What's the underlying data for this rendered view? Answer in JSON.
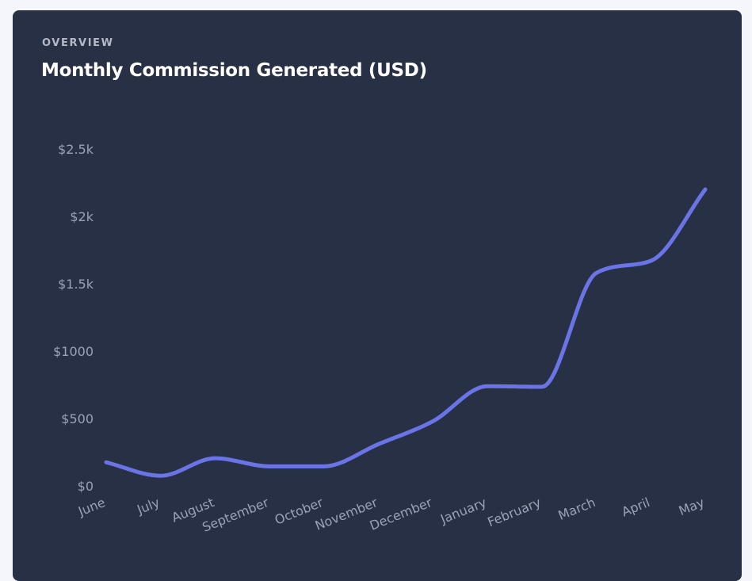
{
  "card": {
    "eyebrow": "OVERVIEW",
    "title": "Monthly Commission Generated (USD)"
  },
  "colors": {
    "background": "#f4f6fb",
    "card": "#283046",
    "line": "#6a74e6",
    "tick_text": "#9aa2b6"
  },
  "chart_data": {
    "type": "line",
    "title": "",
    "xlabel": "",
    "ylabel": "",
    "categories": [
      "June",
      "July",
      "August",
      "September",
      "October",
      "November",
      "December",
      "January",
      "February",
      "March",
      "April",
      "May"
    ],
    "series": [
      {
        "values": [
          175,
          75,
          205,
          145,
          145,
          310,
          480,
          740,
          735,
          1580,
          1670,
          2200
        ]
      }
    ],
    "y_ticks": [
      0,
      500,
      1000,
      1500,
      2000,
      2500
    ],
    "y_tick_labels": [
      "$0",
      "$500",
      "$1000",
      "$1.5k",
      "$2k",
      "$2.5k"
    ],
    "ylim": [
      0,
      2500
    ],
    "grid": false,
    "legend": "none",
    "smooth": true
  }
}
